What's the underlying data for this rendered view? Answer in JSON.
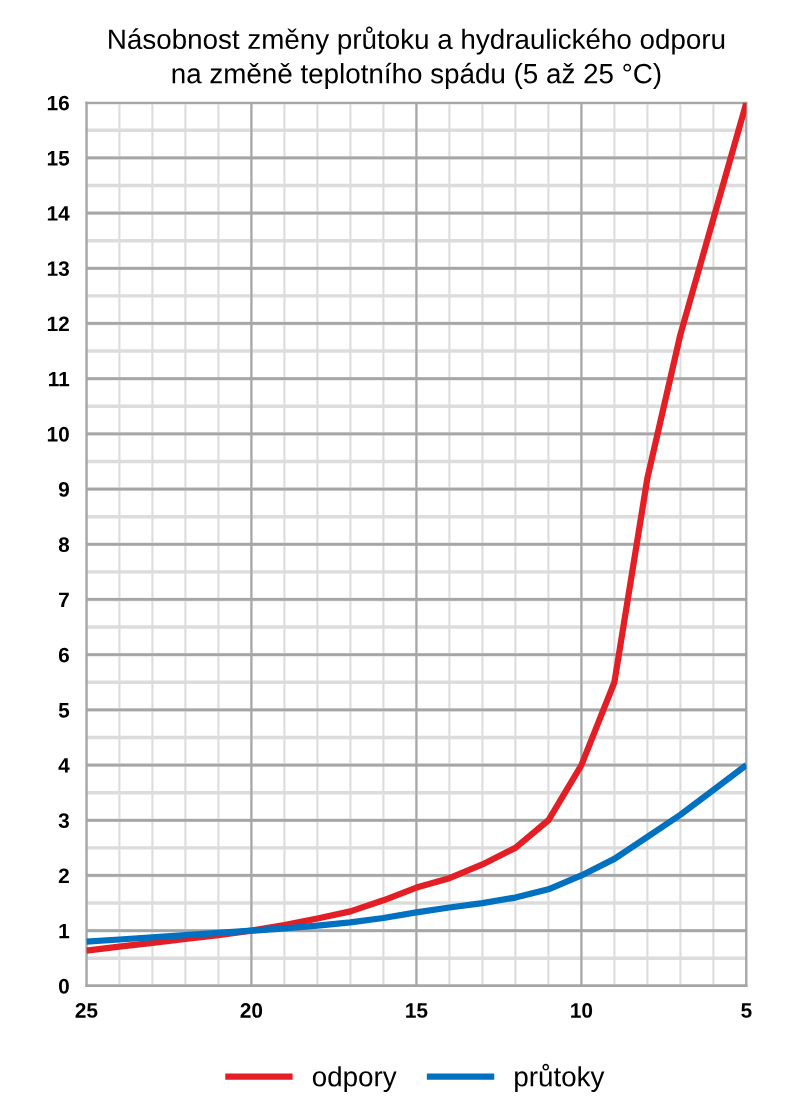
{
  "chart_data": {
    "type": "line",
    "title": "Násobnost změny průtoku a hydraulického odporu\nna změně teplotního spádu (5 až 25 °C)",
    "x": [
      25,
      24,
      23,
      22,
      21,
      20,
      19,
      18,
      17,
      16,
      15,
      14,
      13,
      12,
      11,
      10,
      9,
      8,
      7,
      6,
      5
    ],
    "series": [
      {
        "name": "odpory",
        "color": "#e31e24",
        "values": [
          0.64,
          0.71,
          0.78,
          0.85,
          0.92,
          1.0,
          1.1,
          1.22,
          1.35,
          1.55,
          1.78,
          1.95,
          2.2,
          2.5,
          3.0,
          4.0,
          5.5,
          9.2,
          11.8,
          13.9,
          16.0
        ]
      },
      {
        "name": "průtoky",
        "color": "#0070c0",
        "values": [
          0.8,
          0.84,
          0.88,
          0.92,
          0.96,
          1.0,
          1.04,
          1.09,
          1.15,
          1.23,
          1.33,
          1.42,
          1.5,
          1.6,
          1.75,
          2.0,
          2.3,
          2.7,
          3.1,
          3.55,
          4.0
        ]
      }
    ],
    "xlim": [
      25,
      5
    ],
    "xticks": [
      25,
      20,
      15,
      10,
      5
    ],
    "ylim": [
      0,
      16
    ],
    "yticks": [
      0,
      1,
      2,
      3,
      4,
      5,
      6,
      7,
      8,
      9,
      10,
      11,
      12,
      13,
      14,
      15,
      16
    ],
    "grid": true,
    "legend": "bottom",
    "marker": "none",
    "line_style": "solid"
  }
}
